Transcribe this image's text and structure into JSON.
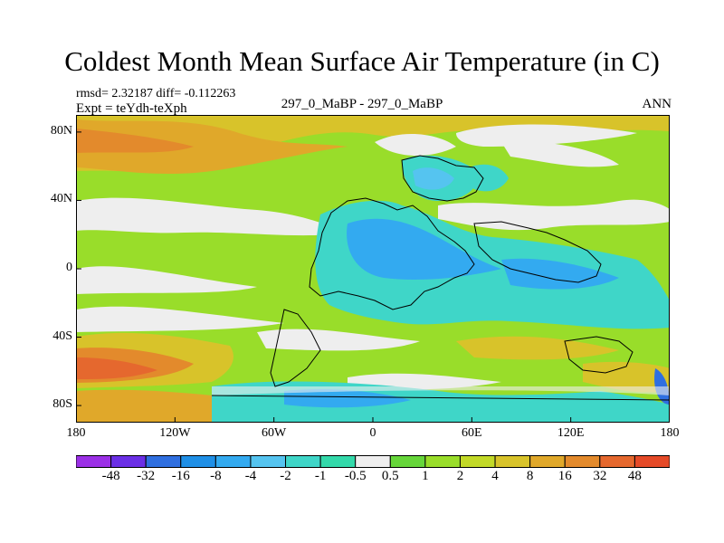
{
  "title": "Coldest Month Mean Surface Air Temperature (in C)",
  "stats_line": "rmsd= 2.32187 diff= -0.112263",
  "expt_line": "Expt = teYdh-teXph",
  "center_label": "297_0_MaBP - 297_0_MaBP",
  "period_label": "ANN",
  "map": {
    "lon_range": [
      -180,
      180
    ],
    "lat_range": [
      -90,
      90
    ],
    "x_ticks": [
      {
        "lon": -180,
        "label": "180"
      },
      {
        "lon": -120,
        "label": "120W"
      },
      {
        "lon": -60,
        "label": "60W"
      },
      {
        "lon": 0,
        "label": "0"
      },
      {
        "lon": 60,
        "label": "60E"
      },
      {
        "lon": 120,
        "label": "120E"
      },
      {
        "lon": 180,
        "label": "180"
      }
    ],
    "y_ticks": [
      {
        "lat": 80,
        "label": "80N"
      },
      {
        "lat": 40,
        "label": "40N"
      },
      {
        "lat": 0,
        "label": "0"
      },
      {
        "lat": -40,
        "label": "40S"
      },
      {
        "lat": -80,
        "label": "80S"
      }
    ]
  },
  "colorbar": {
    "colors": [
      "#9b30e6",
      "#6b2fe6",
      "#2f6fe0",
      "#1f8fe6",
      "#33aaf0",
      "#55c4f0",
      "#3fd6c8",
      "#33d9aa",
      "#eeeeee",
      "#66d63a",
      "#99dd2a",
      "#c2d927",
      "#d8c32a",
      "#e0a82a",
      "#e38a2c",
      "#e5682e",
      "#e54a28"
    ],
    "labels": [
      "-48",
      "-32",
      "-16",
      "-8",
      "-4",
      "-2",
      "-1",
      "-0.5",
      "0.5",
      "1",
      "2",
      "4",
      "8",
      "16",
      "32",
      "48"
    ]
  }
}
